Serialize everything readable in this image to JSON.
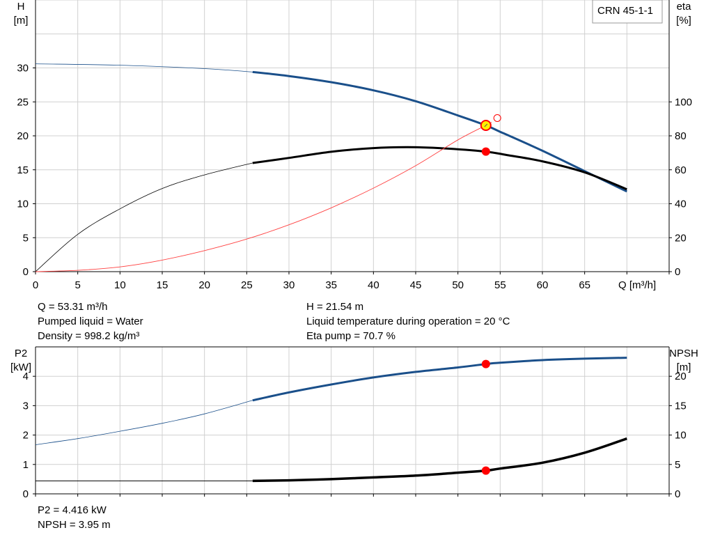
{
  "colors": {
    "head": "#1a4f8a",
    "eta": "#000000",
    "power": "#1a4f8a",
    "npsh": "#000000",
    "system": "#ff4040",
    "marker": "#ff0000",
    "duty_fill": "#ffee00",
    "grid": "#d0d0d0"
  },
  "legend_box": {
    "label": "CRN 45-1-1"
  },
  "top_info": {
    "q": "Q = 53.31 m³/h",
    "liquid": "Pumped liquid = Water",
    "density": "Density = 998.2 kg/m³",
    "h": "H = 21.54 m",
    "temperature": "Liquid temperature during operation = 20 °C",
    "eta": "Eta pump = 70.7 %"
  },
  "bottom_info": {
    "p2": "P2 = 4.416 kW",
    "npsh": "NPSH = 3.95 m"
  },
  "chart_data": [
    {
      "type": "line",
      "title": "",
      "xlabel": "Q [m³/h]",
      "ylabel_left": [
        "H",
        "[m]"
      ],
      "ylabel_right": [
        "eta",
        "[%]"
      ],
      "x_ticks": [
        0,
        5,
        10,
        15,
        20,
        25,
        30,
        35,
        40,
        45,
        50,
        55,
        60,
        65
      ],
      "xlim": [
        0,
        75
      ],
      "y_left_ticks": [
        0,
        5,
        10,
        15,
        20,
        25,
        30
      ],
      "y_left_lim": [
        0,
        40
      ],
      "y_right_ticks": [
        0,
        20,
        40,
        60,
        80,
        100
      ],
      "y_right_lim": [
        0,
        160
      ],
      "grid": true,
      "series": [
        {
          "name": "H",
          "axis": "left",
          "color": "#1a4f8a",
          "x": [
            0,
            10,
            20,
            25.7,
            30,
            35,
            40,
            45,
            50,
            53.31,
            55,
            60,
            65,
            70
          ],
          "y": [
            30.6,
            30.4,
            29.9,
            29.4,
            28.8,
            27.9,
            26.7,
            25.1,
            23.0,
            21.54,
            20.6,
            17.8,
            14.8,
            11.8
          ],
          "thin_until_x": 25.7
        },
        {
          "name": "eta",
          "axis": "right",
          "color": "#000000",
          "x": [
            0,
            5,
            10,
            15,
            20,
            25.7,
            30,
            35,
            40,
            44,
            48,
            53.31,
            56,
            60,
            65,
            70
          ],
          "y": [
            0,
            22,
            37,
            49,
            57,
            64,
            67,
            70.6,
            72.8,
            73.3,
            72.7,
            70.7,
            68.5,
            65,
            58.5,
            48.5
          ],
          "thin_until_x": 25.7
        },
        {
          "name": "system",
          "axis": "left",
          "color": "#ff4040",
          "x": [
            0,
            5,
            10,
            15,
            20,
            25,
            30,
            35,
            40,
            45,
            50,
            53.31,
            54
          ],
          "y": [
            0,
            0.2,
            0.7,
            1.7,
            3.1,
            4.8,
            6.9,
            9.4,
            12.3,
            15.6,
            19.4,
            21.54,
            22.0
          ],
          "thin_until_x": 999
        }
      ],
      "points": [
        {
          "name": "duty-point-h",
          "axis": "left",
          "x": 53.31,
          "y": 21.54,
          "style": "duty"
        },
        {
          "name": "duty-point-eta",
          "axis": "right",
          "x": 53.31,
          "y": 70.7,
          "style": "marker"
        },
        {
          "name": "system-end-point",
          "axis": "left",
          "x": 54,
          "y": 22.0,
          "style": "hollow"
        }
      ]
    },
    {
      "type": "line",
      "title": "",
      "xlabel": "",
      "ylabel_left": [
        "P2",
        "[kW]"
      ],
      "ylabel_right": [
        "NPSH",
        "[m]"
      ],
      "x_ticks": [],
      "xlim": [
        0,
        75
      ],
      "y_left_ticks": [
        0,
        1,
        2,
        3,
        4
      ],
      "y_left_lim": [
        0,
        5
      ],
      "y_right_ticks": [
        0,
        5,
        10,
        15,
        20
      ],
      "y_right_lim": [
        0,
        25
      ],
      "grid": true,
      "series": [
        {
          "name": "P2",
          "axis": "left",
          "color": "#1a4f8a",
          "x": [
            0,
            5,
            10,
            15,
            20,
            25.7,
            30,
            35,
            40,
            45,
            50,
            53.31,
            55,
            60,
            65,
            70
          ],
          "y": [
            1.67,
            1.88,
            2.13,
            2.4,
            2.72,
            3.18,
            3.45,
            3.72,
            3.96,
            4.15,
            4.3,
            4.416,
            4.46,
            4.55,
            4.6,
            4.63
          ],
          "thin_until_x": 25.7
        },
        {
          "name": "NPSH",
          "axis": "right",
          "color": "#000000",
          "x": [
            0,
            25.7,
            30,
            35,
            40,
            45,
            50,
            53.31,
            55,
            60,
            65,
            70
          ],
          "y": [
            2.2,
            2.2,
            2.3,
            2.5,
            2.8,
            3.1,
            3.6,
            3.95,
            4.3,
            5.3,
            7.0,
            9.4
          ],
          "thin_until_x": 25.7
        }
      ],
      "points": [
        {
          "name": "duty-point-p2",
          "axis": "left",
          "x": 53.31,
          "y": 4.416,
          "style": "marker"
        },
        {
          "name": "duty-point-npsh",
          "axis": "right",
          "x": 53.31,
          "y": 3.95,
          "style": "marker"
        }
      ]
    }
  ]
}
